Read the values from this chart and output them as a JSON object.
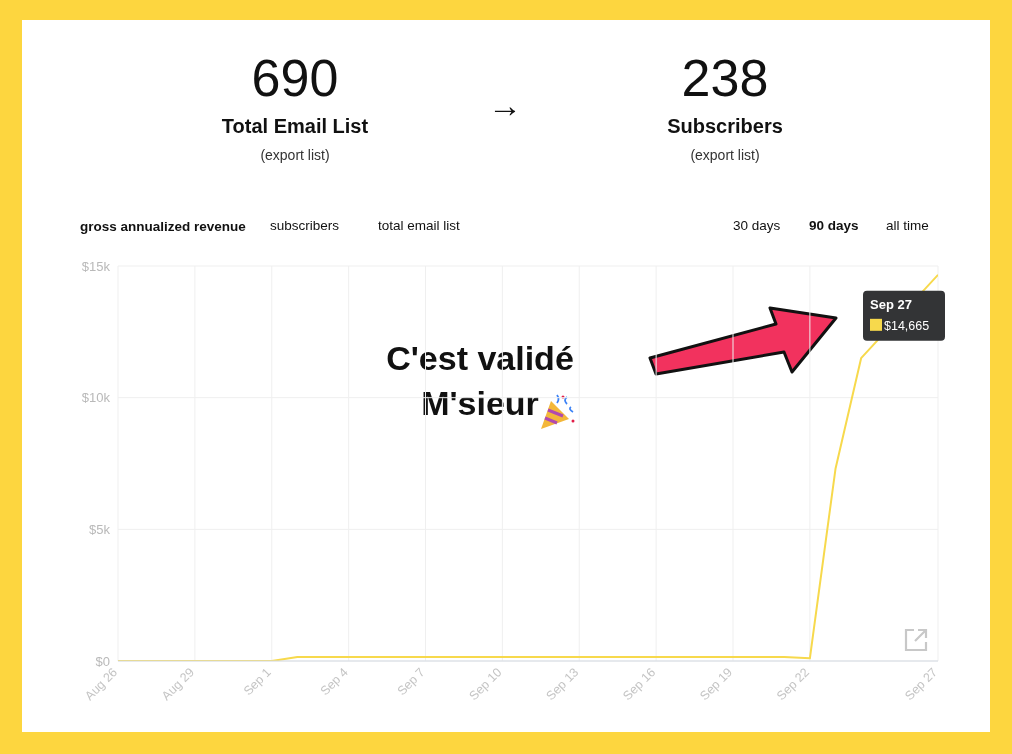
{
  "chart_data": {
    "type": "line",
    "title": "gross annualized revenue",
    "x": [
      "--08-26",
      "--09-01",
      "--09-02",
      "--09-21",
      "--09-22",
      "--09-23",
      "--09-24",
      "--09-27"
    ],
    "series": [
      {
        "color": "#f7d94c",
        "values": [
          0,
          0,
          150,
          150,
          100,
          7300,
          11500,
          14665
        ]
      }
    ],
    "xlim": [
      "--08-26",
      "--09-27"
    ],
    "xticks": [
      {
        "value": "--08-26",
        "label": "Aug 26"
      },
      {
        "value": "--08-29",
        "label": "Aug 29"
      },
      {
        "value": "--09-01",
        "label": "Sep 1"
      },
      {
        "value": "--09-04",
        "label": "Sep 4"
      },
      {
        "value": "--09-07",
        "label": "Sep 7"
      },
      {
        "value": "--09-10",
        "label": "Sep 10"
      },
      {
        "value": "--09-13",
        "label": "Sep 13"
      },
      {
        "value": "--09-16",
        "label": "Sep 16"
      },
      {
        "value": "--09-19",
        "label": "Sep 19"
      },
      {
        "value": "--09-22",
        "label": "Sep 22"
      },
      {
        "value": "--09-27",
        "label": "Sep 27"
      }
    ],
    "ylim": [
      0,
      15000
    ],
    "yticks": [
      {
        "value": 0,
        "label": "$0"
      },
      {
        "value": 5000,
        "label": "$5k"
      },
      {
        "value": 10000,
        "label": "$10k"
      },
      {
        "value": 15000,
        "label": "$15k"
      }
    ],
    "grid": true,
    "marker": "none",
    "line_style": "solid",
    "annotations": [
      "690",
      "Total Email List",
      "(export list)",
      "→",
      "238",
      "Subscribers",
      "(export list)",
      "subscribers",
      "total email list",
      "30 days",
      "90 days",
      "all time",
      "C'est validé\nM'sieur",
      {
        "text": "Sep 27\n$14,665",
        "x": "--09-27",
        "y": 14665
      }
    ]
  }
}
